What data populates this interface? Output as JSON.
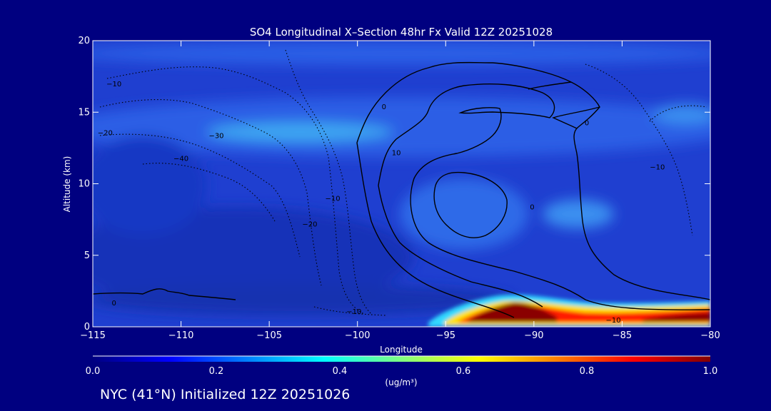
{
  "chart_data": {
    "type": "heatmap",
    "title": "SO4 Longitudinal X–Section 48hr  Fx Valid 12Z 20251028",
    "xlabel": "Longitude",
    "ylabel": "Altitude (km)",
    "xlim": [
      -115,
      -80
    ],
    "ylim": [
      0,
      20
    ],
    "x_ticks": [
      -115,
      -110,
      -105,
      -100,
      -95,
      -90,
      -85,
      -80
    ],
    "x_tick_labels": [
      "−115",
      "−110",
      "−105",
      "−100",
      "−95",
      "−90",
      "−85",
      "−80"
    ],
    "y_ticks": [
      0,
      5,
      10,
      15,
      20
    ],
    "y_tick_labels": [
      "0",
      "5",
      "10",
      "15",
      "20"
    ],
    "colorbar": {
      "label": "(ug/m³)",
      "ticks": [
        0.0,
        0.2,
        0.4,
        0.6,
        0.8,
        1.0
      ],
      "tick_labels": [
        "0.0",
        "0.2",
        "0.4",
        "0.6",
        "0.8",
        "1.0"
      ],
      "colormap": [
        "#000080",
        "#0000ff",
        "#0080ff",
        "#00ffff",
        "#80ff80",
        "#ffff00",
        "#ff8000",
        "#ff0000",
        "#800000"
      ]
    },
    "background": "#1f3fd0",
    "concentration_regions": [
      {
        "value": 0.1,
        "lon_range": [
          -115,
          -80
        ],
        "alt_range": [
          0,
          20
        ]
      },
      {
        "value": 0.2,
        "lon_range": [
          -115,
          -80
        ],
        "alt_range": [
          13,
          16
        ]
      },
      {
        "value": 0.3,
        "lon_range": [
          -108,
          -97
        ],
        "alt_range": [
          13,
          15
        ]
      },
      {
        "value": 0.05,
        "lon_range": [
          -115,
          -80
        ],
        "alt_range": [
          0.5,
          6
        ]
      },
      {
        "value": 0.95,
        "lon_range": [
          -93,
          -89
        ],
        "alt_range": [
          0.2,
          1.4
        ]
      },
      {
        "value": 0.6,
        "lon_range": [
          -95,
          -80
        ],
        "alt_range": [
          0.2,
          1.9
        ]
      }
    ],
    "contour_labels": [
      {
        "text": "0",
        "lon": -98.5,
        "alt": 15.2
      },
      {
        "text": "0",
        "lon": -87,
        "alt": 14.1
      },
      {
        "text": "10",
        "lon": -97.8,
        "alt": 12.0
      },
      {
        "text": "−10",
        "lon": -113.8,
        "alt": 16.8
      },
      {
        "text": "−20",
        "lon": -114.3,
        "alt": 13.4
      },
      {
        "text": "−30",
        "lon": -108,
        "alt": 13.2
      },
      {
        "text": "−40",
        "lon": -110,
        "alt": 11.6
      },
      {
        "text": "−10",
        "lon": -101.4,
        "alt": 8.8
      },
      {
        "text": "−20",
        "lon": -102.7,
        "alt": 7.0
      },
      {
        "text": "0",
        "lon": -113.8,
        "alt": 1.5
      },
      {
        "text": "−10",
        "lon": -100.2,
        "alt": 0.9
      },
      {
        "text": "0",
        "lon": -90.1,
        "alt": 8.2
      },
      {
        "text": "−10",
        "lon": -83,
        "alt": 11.0
      },
      {
        "text": "−10",
        "lon": -85.5,
        "alt": 0.3
      }
    ]
  },
  "footer": "NYC (41°N) Initialized 12Z 20251026"
}
